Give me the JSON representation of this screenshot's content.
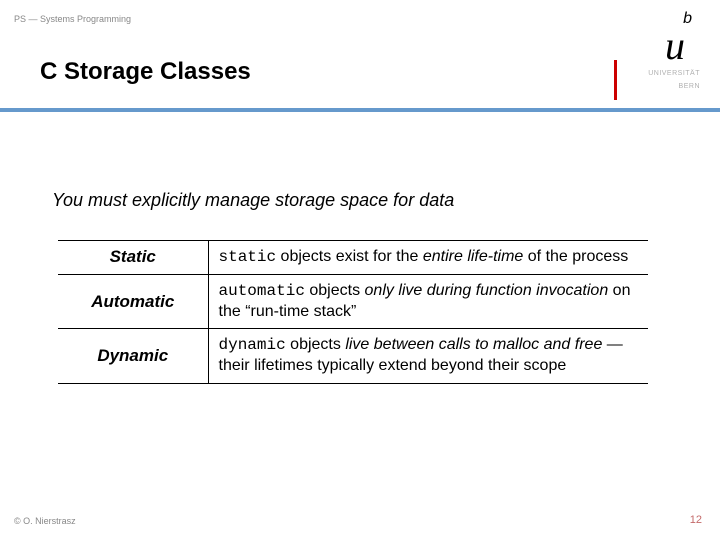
{
  "header": {
    "label": "PS — Systems Programming"
  },
  "title": "C Storage Classes",
  "logo": {
    "sup": "b",
    "main": "u",
    "uni1": "UNIVERSITÄT",
    "uni2": "BERN"
  },
  "intro": "You must explicitly manage storage space for data",
  "rows": [
    {
      "label": "Static",
      "kw": "static",
      "mid": " objects exist for the ",
      "em": "entire life-time",
      "tail": " of the process"
    },
    {
      "label": "Automatic",
      "kw": "automatic",
      "mid": " objects ",
      "em": "only live during function invocation",
      "tail": " on the “run-time stack”"
    },
    {
      "label": "Dynamic",
      "kw": "dynamic",
      "mid": " objects ",
      "em": "live between calls to malloc and free",
      "tail": " — their lifetimes typically extend beyond their scope"
    }
  ],
  "footer": "© O. Nierstrasz",
  "page": "12",
  "colors": {
    "divider": "#6699cc",
    "label_muted": "#888888",
    "page_num": "#c46a6a",
    "red_edge": "#cc0000"
  }
}
